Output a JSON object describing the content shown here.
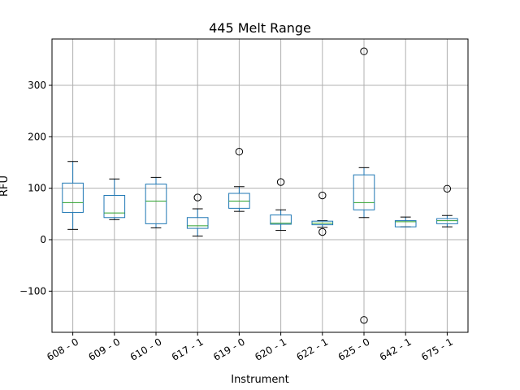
{
  "chart_data": {
    "type": "box",
    "title": "445 Melt Range",
    "xlabel": "Instrument",
    "ylabel": "RFU",
    "ylim": [
      -180,
      390
    ],
    "yticks": [
      -100,
      0,
      100,
      200,
      300
    ],
    "grid": true,
    "colors": {
      "box": "#1f77b4",
      "median": "#2ca02c",
      "whisker": "#000000",
      "grid": "#b0b0b0"
    },
    "categories": [
      "608 - 0",
      "609 - 0",
      "610 - 0",
      "617 - 1",
      "619 - 0",
      "620 - 1",
      "622 - 1",
      "625 - 0",
      "642 - 1",
      "675 - 1"
    ],
    "boxes": [
      {
        "q1": 53,
        "median": 72,
        "q3": 110,
        "whislo": 20,
        "whishi": 152,
        "fliers": []
      },
      {
        "q1": 43,
        "median": 52,
        "q3": 86,
        "whislo": 39,
        "whishi": 118,
        "fliers": []
      },
      {
        "q1": 31,
        "median": 75,
        "q3": 108,
        "whislo": 23,
        "whishi": 121,
        "fliers": []
      },
      {
        "q1": 22,
        "median": 27,
        "q3": 43,
        "whislo": 7,
        "whishi": 60,
        "fliers": [
          82
        ]
      },
      {
        "q1": 61,
        "median": 75,
        "q3": 90,
        "whislo": 55,
        "whishi": 103,
        "fliers": [
          171
        ]
      },
      {
        "q1": 30,
        "median": 32,
        "q3": 48,
        "whislo": 18,
        "whishi": 58,
        "fliers": [
          112
        ]
      },
      {
        "q1": 29,
        "median": 32,
        "q3": 36,
        "whislo": 24,
        "whishi": 37,
        "fliers": [
          86,
          15
        ]
      },
      {
        "q1": 58,
        "median": 72,
        "q3": 126,
        "whislo": 43,
        "whishi": 140,
        "fliers": [
          366,
          -156
        ]
      },
      {
        "q1": 25,
        "median": 35,
        "q3": 37,
        "whislo": 25,
        "whishi": 44,
        "fliers": []
      },
      {
        "q1": 31,
        "median": 37,
        "q3": 41,
        "whislo": 25,
        "whishi": 47,
        "fliers": [
          99
        ]
      }
    ]
  }
}
